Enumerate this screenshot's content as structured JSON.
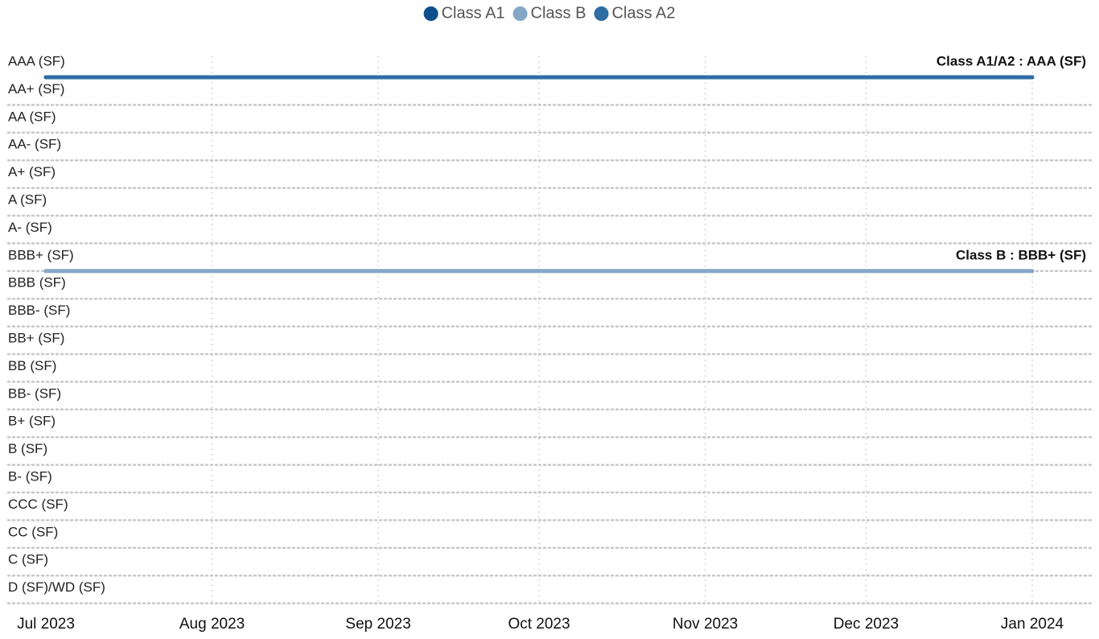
{
  "chart_data": {
    "type": "line",
    "categories": [
      "AAA (SF)",
      "AA+ (SF)",
      "AA (SF)",
      "AA- (SF)",
      "A+ (SF)",
      "A (SF)",
      "A- (SF)",
      "BBB+ (SF)",
      "BBB (SF)",
      "BBB- (SF)",
      "BB+ (SF)",
      "BB (SF)",
      "BB- (SF)",
      "B+ (SF)",
      "B (SF)",
      "B- (SF)",
      "CCC (SF)",
      "CC (SF)",
      "C (SF)",
      "D (SF)/WD (SF)"
    ],
    "x": [
      "2023-07",
      "2024-01"
    ],
    "series": [
      {
        "name": "Class A1",
        "color": "#0d4f8b",
        "values": [
          "AAA (SF)",
          "AAA (SF)"
        ]
      },
      {
        "name": "Class B",
        "color": "#86a6c8",
        "values": [
          "BBB+ (SF)",
          "BBB+ (SF)"
        ]
      },
      {
        "name": "Class A2",
        "color": "#2f6da3",
        "values": [
          "AAA (SF)",
          "AAA (SF)"
        ]
      }
    ],
    "xlim": [
      "2023-07",
      "2024-01"
    ],
    "xticks": [
      {
        "value": "2023-07",
        "label": "Jul 2023"
      },
      {
        "value": "2023-08",
        "label": "Aug 2023"
      },
      {
        "value": "2023-09",
        "label": "Sep 2023"
      },
      {
        "value": "2023-10",
        "label": "Oct 2023"
      },
      {
        "value": "2023-11",
        "label": "Nov 2023"
      },
      {
        "value": "2023-12",
        "label": "Dec 2023"
      },
      {
        "value": "2024-01",
        "label": "Jan 2024"
      }
    ],
    "annotations": [
      {
        "text": "Class A1/A2 : AAA (SF)",
        "category": "AAA (SF)"
      },
      {
        "text": "Class B : BBB+ (SF)",
        "category": "BBB+ (SF)"
      }
    ],
    "grid": true,
    "legend": "top"
  }
}
